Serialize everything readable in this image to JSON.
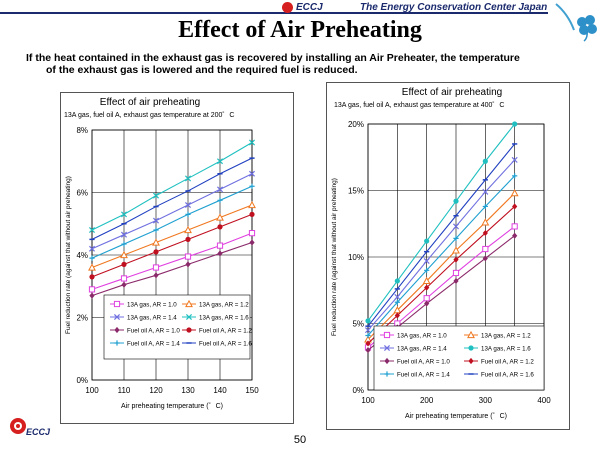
{
  "header": {
    "org_short": "ECCJ",
    "org_name": "The Energy Conservation Center Japan"
  },
  "title": "Effect of Air Preheating",
  "subtitle_line1": "If the heat contained in the exhaust gas is recovered by installing an Air Preheater, the temperature",
  "subtitle_line2": "of the exhaust gas is lowered and the required fuel is reduced.",
  "footer": {
    "logo_text": "ECCJ",
    "page_number": "50"
  },
  "colors": {
    "navy": "#1a2a6c",
    "red": "#d62020",
    "s1": "#e040e0",
    "s2": "#f07820",
    "s3": "#7070e0",
    "s4": "#20c0c0",
    "s5": "#8b2a6a",
    "s6": "#c01020",
    "s7": "#20a0d0",
    "s8": "#2040c0"
  },
  "chart_data": [
    {
      "type": "line",
      "title": "Effect of air preheating",
      "subtitle": "13A gas, fuel oil A, exhaust gas temperature at 200゜C",
      "xlabel": "Air preheating temperature (゜C)",
      "ylabel": "Fuel reduction rate (against that without air preheating)",
      "xlim": [
        100,
        150
      ],
      "ylim": [
        0,
        8
      ],
      "xticks": [
        100,
        110,
        120,
        130,
        140,
        150
      ],
      "xtick_labels": [
        "100",
        "110",
        "120",
        "130",
        "140",
        "150"
      ],
      "yticks": [
        0,
        2,
        4,
        6,
        8
      ],
      "ytick_labels": [
        "0%",
        "2%",
        "4%",
        "6%",
        "8%"
      ],
      "grid": true,
      "x": [
        100,
        110,
        120,
        130,
        140,
        150
      ],
      "series": [
        {
          "name": "13A gas, AR = 1.0",
          "marker": "square",
          "values": [
            2.9,
            3.25,
            3.6,
            3.95,
            4.3,
            4.7
          ]
        },
        {
          "name": "13A gas, AR = 1.2",
          "marker": "triangle",
          "values": [
            3.6,
            4.0,
            4.4,
            4.8,
            5.2,
            5.6
          ]
        },
        {
          "name": "13A gas, AR = 1.4",
          "marker": "x",
          "values": [
            4.2,
            4.65,
            5.1,
            5.6,
            6.1,
            6.6
          ]
        },
        {
          "name": "13A gas, AR = 1.6",
          "marker": "x",
          "values": [
            4.8,
            5.3,
            5.9,
            6.45,
            7.0,
            7.6
          ]
        },
        {
          "name": "Fuel oil A, AR = 1.0",
          "marker": "diamond",
          "values": [
            2.7,
            3.05,
            3.35,
            3.7,
            4.05,
            4.4
          ]
        },
        {
          "name": "Fuel oil A, AR = 1.2",
          "marker": "circle",
          "values": [
            3.3,
            3.7,
            4.1,
            4.5,
            4.9,
            5.3
          ]
        },
        {
          "name": "Fuel oil A, AR = 1.4",
          "marker": "plus",
          "values": [
            3.9,
            4.35,
            4.8,
            5.3,
            5.75,
            6.2
          ]
        },
        {
          "name": "Fuel oil A, AR = 1.6",
          "marker": "dash",
          "values": [
            4.5,
            5.0,
            5.55,
            6.05,
            6.6,
            7.1
          ]
        }
      ]
    },
    {
      "type": "line",
      "title": "Effect of air preheating",
      "subtitle": "13A gas, fuel oil A, exhaust gas temperature at 400゜C",
      "xlabel": "Air preheating temperature (゜C)",
      "ylabel": "Fuel reduction rate (against that without air preheating)",
      "xlim": [
        100,
        400
      ],
      "ylim": [
        0,
        20
      ],
      "xticks": [
        100,
        150,
        200,
        250,
        300,
        350,
        400
      ],
      "xtick_labels": [
        "100",
        "",
        "200",
        "",
        "300",
        "",
        "400"
      ],
      "yticks": [
        0,
        5,
        10,
        15,
        20
      ],
      "ytick_labels": [
        "0%",
        "5%",
        "10%",
        "15%",
        "20%"
      ],
      "grid": true,
      "x": [
        100,
        150,
        200,
        250,
        300,
        350
      ],
      "series": [
        {
          "name": "13A gas, AR = 1.0",
          "marker": "square",
          "values": [
            3.2,
            5.0,
            6.9,
            8.8,
            10.6,
            12.3
          ]
        },
        {
          "name": "13A gas, AR = 1.2",
          "marker": "triangle",
          "values": [
            3.8,
            6.0,
            8.2,
            10.5,
            12.6,
            14.8
          ]
        },
        {
          "name": "13A gas, AR = 1.4",
          "marker": "x",
          "values": [
            4.5,
            7.0,
            9.7,
            12.3,
            14.9,
            17.3
          ]
        },
        {
          "name": "13A gas, AR = 1.6",
          "marker": "circle",
          "values": [
            5.2,
            8.2,
            11.2,
            14.2,
            17.2,
            20.0
          ]
        },
        {
          "name": "Fuel oil A, AR = 1.0",
          "marker": "diamond",
          "values": [
            3.0,
            4.7,
            6.5,
            8.2,
            9.9,
            11.6
          ]
        },
        {
          "name": "Fuel oil A, AR = 1.2",
          "marker": "diamond",
          "values": [
            3.5,
            5.6,
            7.7,
            9.8,
            11.8,
            13.8
          ]
        },
        {
          "name": "Fuel oil A, AR = 1.4",
          "marker": "plus",
          "values": [
            4.1,
            6.6,
            9.0,
            11.4,
            13.8,
            16.1
          ]
        },
        {
          "name": "Fuel oil A, AR = 1.6",
          "marker": "dash",
          "values": [
            4.8,
            7.6,
            10.4,
            13.1,
            15.8,
            18.5
          ]
        }
      ]
    }
  ]
}
